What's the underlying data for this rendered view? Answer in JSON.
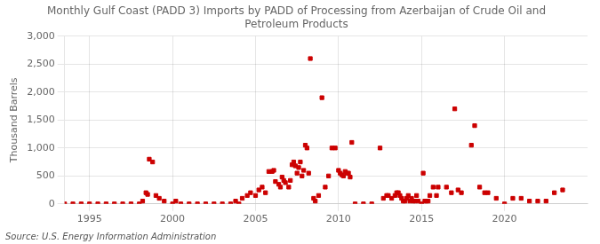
{
  "chart_data": {
    "type": "scatter",
    "title": "Monthly Gulf Coast (PADD 3) Imports by PADD of Processing from Azerbaijan of Crude Oil and\nPetroleum Products",
    "ylabel": "Thousand Barrels",
    "annotations": [
      "Source: U.S. Energy Information Administration"
    ],
    "color": "#cc0000",
    "marker": "square",
    "grid": true,
    "xlim": [
      1993.5,
      2025.0
    ],
    "ylim": [
      0,
      3000
    ],
    "xticks": [
      1995,
      2000,
      2005,
      2010,
      2015,
      2020
    ],
    "yticks": [
      0,
      500,
      {
        "value": 1000,
        "label": "1,000"
      },
      {
        "value": 1500,
        "label": "1,500"
      },
      {
        "value": 2000,
        "label": "2,000"
      },
      {
        "value": 2500,
        "label": "2,500"
      },
      {
        "value": 3000,
        "label": "3,000"
      }
    ],
    "x": [
      1993.5,
      1994.0,
      1994.5,
      1995.0,
      1995.5,
      1996.0,
      1996.5,
      1997.0,
      1997.5,
      1998.0,
      1998.2,
      1998.4,
      1998.5,
      1998.6,
      1998.8,
      1999.0,
      1999.2,
      1999.5,
      2000.0,
      2000.2,
      2000.5,
      2001.0,
      2001.5,
      2002.0,
      2002.5,
      2003.0,
      2003.5,
      2003.8,
      2004.0,
      2004.2,
      2004.5,
      2004.7,
      2005.0,
      2005.2,
      2005.4,
      2005.6,
      2005.8,
      2006.0,
      2006.1,
      2006.2,
      2006.4,
      2006.5,
      2006.6,
      2006.7,
      2006.8,
      2007.0,
      2007.1,
      2007.2,
      2007.3,
      2007.4,
      2007.5,
      2007.6,
      2007.7,
      2007.8,
      2007.9,
      2008.0,
      2008.1,
      2008.2,
      2008.3,
      2008.5,
      2008.6,
      2008.8,
      2009.0,
      2009.2,
      2009.4,
      2009.6,
      2009.8,
      2010.0,
      2010.1,
      2010.2,
      2010.3,
      2010.4,
      2010.5,
      2010.6,
      2010.7,
      2010.8,
      2011.0,
      2011.5,
      2012.0,
      2012.5,
      2012.7,
      2012.9,
      2013.0,
      2013.2,
      2013.4,
      2013.5,
      2013.6,
      2013.7,
      2013.8,
      2013.9,
      2014.0,
      2014.1,
      2014.2,
      2014.3,
      2014.4,
      2014.5,
      2014.6,
      2014.7,
      2014.8,
      2015.0,
      2015.1,
      2015.2,
      2015.3,
      2015.4,
      2015.5,
      2015.7,
      2015.9,
      2016.0,
      2016.5,
      2016.8,
      2017.0,
      2017.2,
      2017.4,
      2018.0,
      2018.2,
      2018.5,
      2018.8,
      2019.0,
      2019.5,
      2020.0,
      2020.5,
      2021.0,
      2021.5,
      2022.0,
      2022.5,
      2023.0,
      2023.5
    ],
    "values": [
      0,
      0,
      0,
      0,
      0,
      0,
      0,
      0,
      0,
      0,
      50,
      200,
      170,
      800,
      750,
      150,
      100,
      50,
      0,
      50,
      0,
      0,
      0,
      0,
      0,
      0,
      0,
      50,
      0,
      100,
      150,
      200,
      150,
      250,
      300,
      200,
      580,
      580,
      600,
      400,
      350,
      300,
      480,
      420,
      380,
      300,
      420,
      700,
      750,
      680,
      550,
      650,
      750,
      500,
      600,
      1050,
      1000,
      550,
      2600,
      100,
      50,
      150,
      1900,
      300,
      500,
      1000,
      1000,
      600,
      550,
      520,
      500,
      580,
      550,
      550,
      480,
      1100,
      0,
      0,
      0,
      1000,
      100,
      150,
      150,
      100,
      150,
      200,
      200,
      150,
      100,
      50,
      50,
      100,
      150,
      50,
      100,
      50,
      50,
      150,
      50,
      0,
      550,
      50,
      50,
      50,
      150,
      300,
      150,
      300,
      300,
      200,
      1700,
      250,
      200,
      1050,
      1400,
      300,
      200,
      200,
      100,
      0,
      100,
      100,
      50,
      50,
      50,
      200,
      250
    ]
  }
}
